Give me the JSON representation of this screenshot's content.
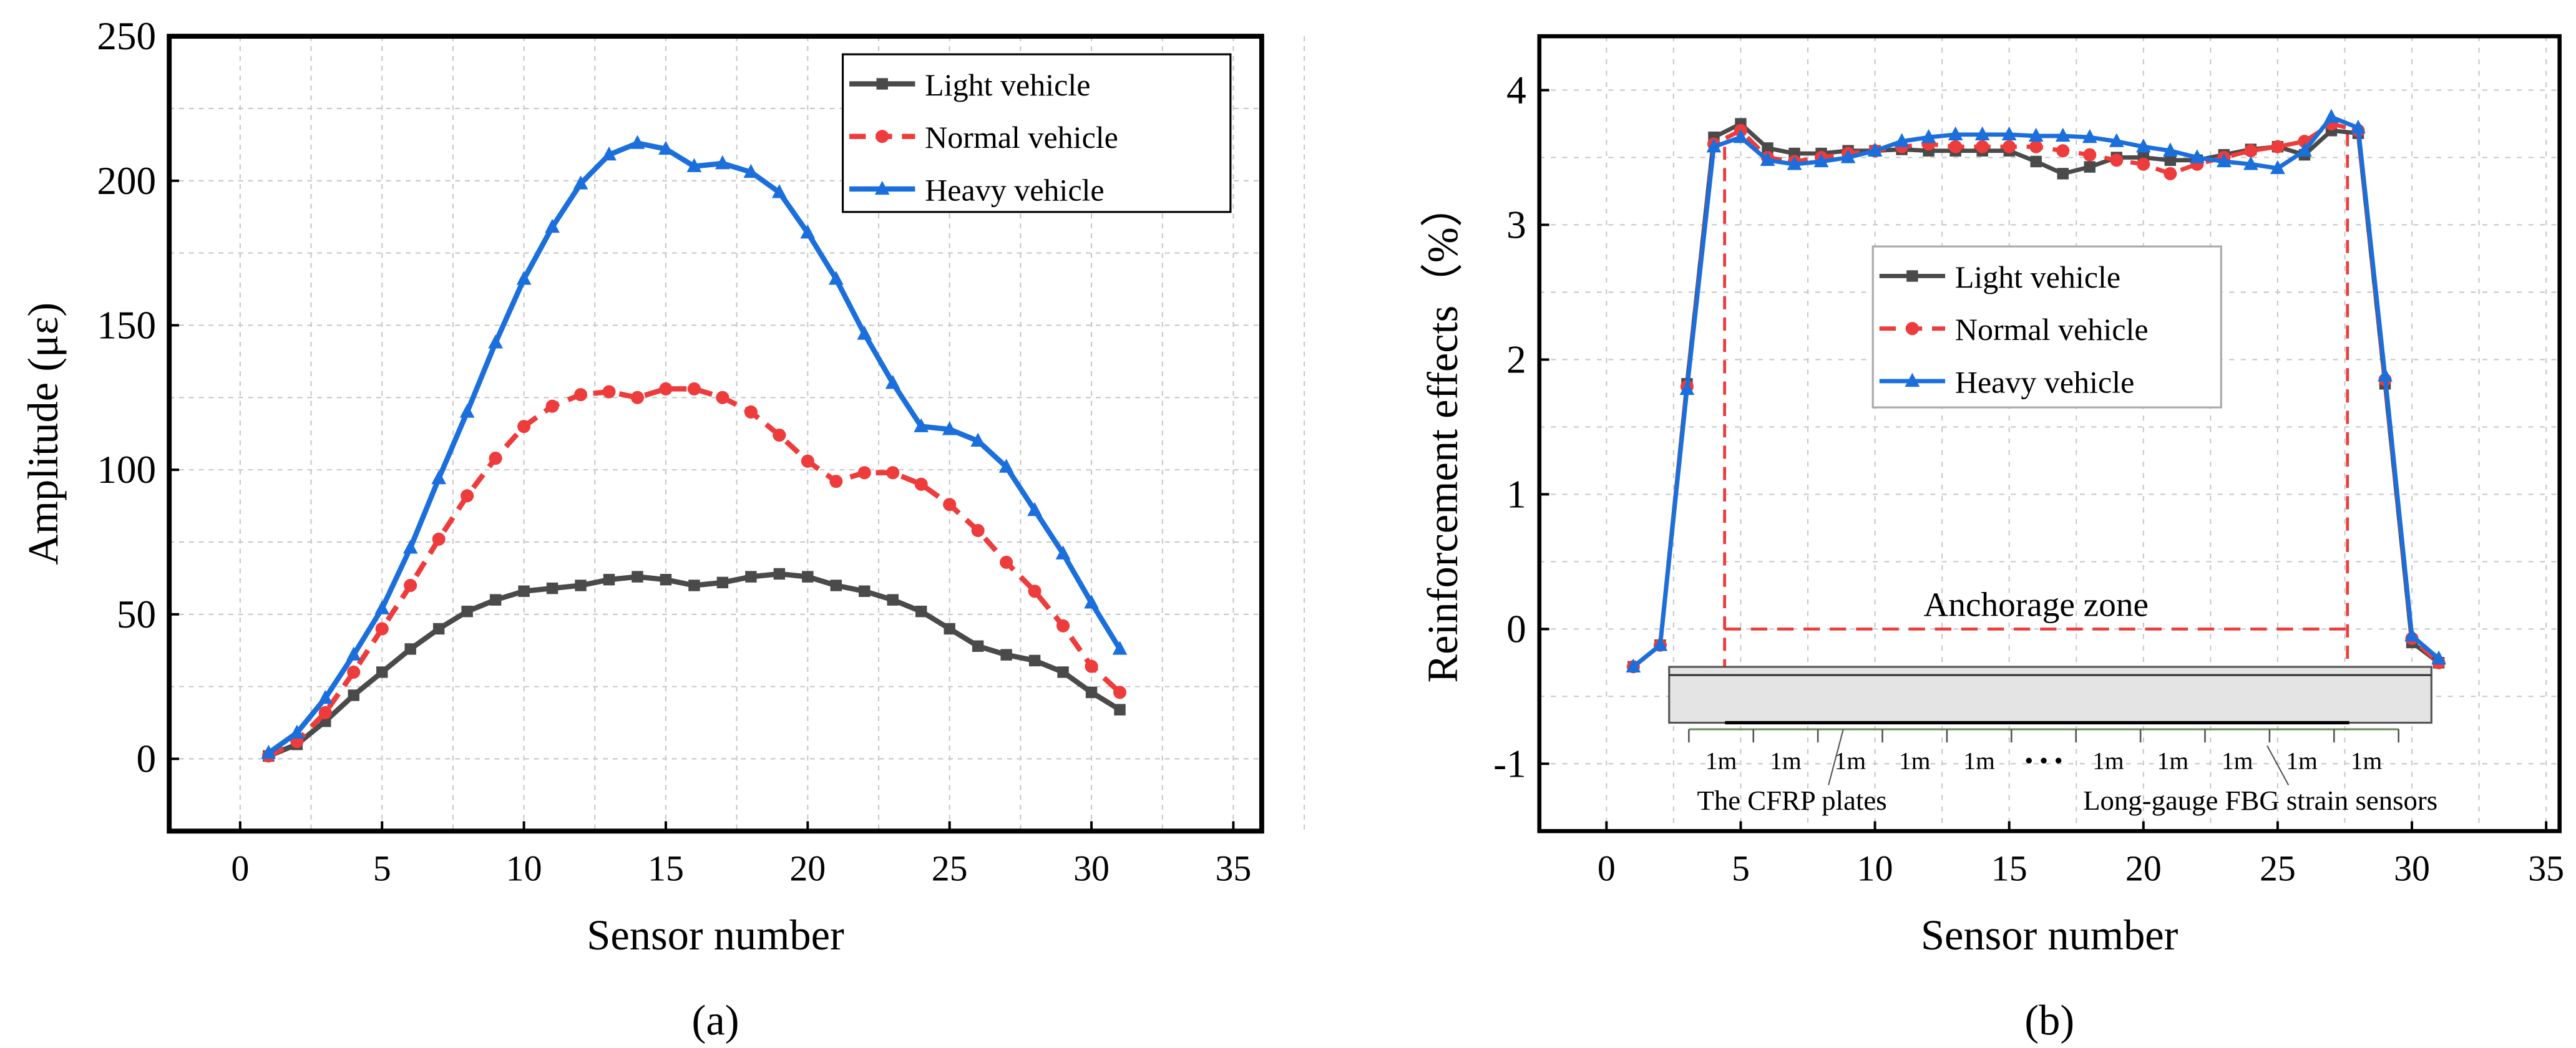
{
  "chart_data": [
    {
      "type": "line",
      "panel_label": "(a)",
      "xlabel": "Sensor number",
      "ylabel": "Amplitude (με)",
      "xlim": [
        -2.5,
        36
      ],
      "ylim": [
        -25,
        250
      ],
      "xticks": [
        0,
        5,
        10,
        15,
        20,
        25,
        30,
        35
      ],
      "yticks": [
        0,
        50,
        100,
        150,
        200,
        250
      ],
      "grid": true,
      "legend_position": "top-right",
      "x": [
        1,
        2,
        3,
        4,
        5,
        6,
        7,
        8,
        9,
        10,
        11,
        12,
        13,
        14,
        15,
        16,
        17,
        18,
        19,
        20,
        21,
        22,
        23,
        24,
        25,
        26,
        27,
        28,
        29,
        30,
        31
      ],
      "series": [
        {
          "name": "Light vehicle",
          "color": "#4a4a4a",
          "marker": "square",
          "dash": false,
          "values": [
            1,
            5,
            13,
            22,
            30,
            38,
            45,
            51,
            55,
            58,
            59,
            60,
            62,
            63,
            62,
            60,
            61,
            63,
            64,
            63,
            60,
            58,
            55,
            51,
            45,
            39,
            36,
            34,
            30,
            23,
            17
          ]
        },
        {
          "name": "Normal vehicle",
          "color": "#ee3b3b",
          "marker": "circle",
          "dash": true,
          "values": [
            1,
            6,
            16,
            30,
            45,
            60,
            76,
            91,
            104,
            115,
            122,
            126,
            127,
            125,
            128,
            128,
            125,
            120,
            112,
            103,
            96,
            99,
            99,
            95,
            88,
            79,
            68,
            58,
            46,
            32,
            23
          ]
        },
        {
          "name": "Heavy vehicle",
          "color": "#1a6fdc",
          "marker": "triangle",
          "dash": false,
          "values": [
            2,
            9,
            21,
            36,
            52,
            73,
            97,
            120,
            144,
            166,
            184,
            199,
            209,
            213,
            211,
            205,
            206,
            203,
            196,
            182,
            166,
            147,
            130,
            115,
            114,
            110,
            101,
            86,
            71,
            54,
            38
          ]
        }
      ]
    },
    {
      "type": "line",
      "panel_label": "(b)",
      "xlabel": "Sensor number",
      "ylabel": "Reinforcement effects（%）",
      "xlim": [
        -2.5,
        35.5
      ],
      "ylim": [
        -1.5,
        4.4
      ],
      "xticks": [
        0,
        5,
        10,
        15,
        20,
        25,
        30,
        35
      ],
      "yticks": [
        -1,
        0,
        1,
        2,
        3,
        4
      ],
      "grid": true,
      "legend_position": "center",
      "x": [
        1,
        2,
        3,
        4,
        5,
        6,
        7,
        8,
        9,
        10,
        11,
        12,
        13,
        14,
        15,
        16,
        17,
        18,
        19,
        20,
        21,
        22,
        23,
        24,
        25,
        26,
        27,
        28,
        29,
        30,
        31
      ],
      "series": [
        {
          "name": "Light vehicle",
          "color": "#4a4a4a",
          "marker": "square",
          "dash": false,
          "values": [
            -0.28,
            -0.12,
            1.82,
            3.65,
            3.75,
            3.57,
            3.53,
            3.53,
            3.55,
            3.55,
            3.56,
            3.55,
            3.55,
            3.55,
            3.55,
            3.47,
            3.38,
            3.43,
            3.5,
            3.5,
            3.48,
            3.48,
            3.52,
            3.56,
            3.58,
            3.52,
            3.7,
            3.68,
            1.82,
            -0.1,
            -0.25
          ]
        },
        {
          "name": "Normal vehicle",
          "color": "#ee3b3b",
          "marker": "circle",
          "dash": true,
          "values": [
            -0.28,
            -0.12,
            1.8,
            3.6,
            3.7,
            3.5,
            3.47,
            3.5,
            3.53,
            3.55,
            3.58,
            3.6,
            3.58,
            3.58,
            3.58,
            3.58,
            3.55,
            3.52,
            3.48,
            3.45,
            3.38,
            3.45,
            3.5,
            3.55,
            3.58,
            3.62,
            3.75,
            3.7,
            1.85,
            -0.07,
            -0.25
          ]
        },
        {
          "name": "Heavy vehicle",
          "color": "#1a6fdc",
          "marker": "triangle",
          "dash": false,
          "values": [
            -0.28,
            -0.12,
            1.78,
            3.58,
            3.65,
            3.48,
            3.45,
            3.47,
            3.5,
            3.55,
            3.62,
            3.65,
            3.67,
            3.67,
            3.67,
            3.66,
            3.66,
            3.65,
            3.62,
            3.58,
            3.55,
            3.5,
            3.47,
            3.45,
            3.42,
            3.55,
            3.8,
            3.72,
            1.88,
            -0.05,
            -0.22
          ]
        }
      ],
      "annotations": {
        "anchorage_zone": "Anchorage zone",
        "anchorage_range": [
          4.4,
          27.6
        ],
        "segment_labels": [
          "1m",
          "1m",
          "1m",
          "1m",
          "1m",
          "• • •",
          "1m",
          "1m",
          "1m",
          "1m",
          "1m"
        ],
        "cfrp_label": "The CFRP plates",
        "sensor_label": "Long-gauge FBG strain sensors"
      }
    }
  ]
}
